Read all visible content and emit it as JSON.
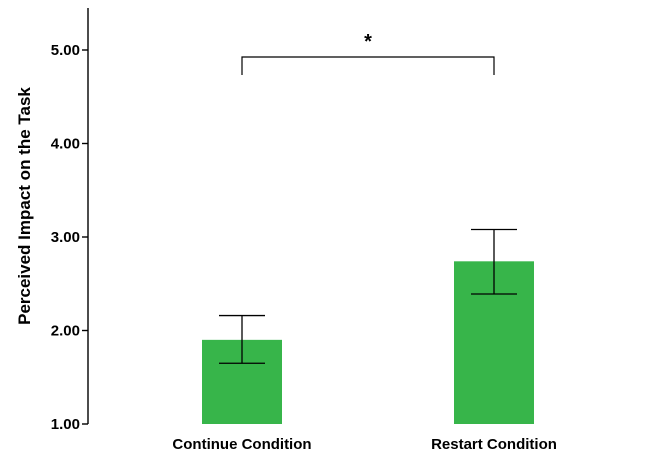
{
  "chart_data": {
    "type": "bar",
    "categories": [
      "Continue Condition",
      "Restart Condition"
    ],
    "values": [
      1.9,
      2.74
    ],
    "error_bars": [
      {
        "low": 1.65,
        "high": 2.16
      },
      {
        "low": 2.39,
        "high": 3.08
      }
    ],
    "ylabel": "Perceived Impact on the Task",
    "xlabel": "",
    "ylim": [
      1.0,
      5.0
    ],
    "yticks": [
      "1.00",
      "2.00",
      "3.00",
      "4.00",
      "5.00"
    ],
    "significance": {
      "label": "*",
      "between": [
        0,
        1
      ]
    },
    "bar_color": "#37b54a",
    "grid": false
  }
}
